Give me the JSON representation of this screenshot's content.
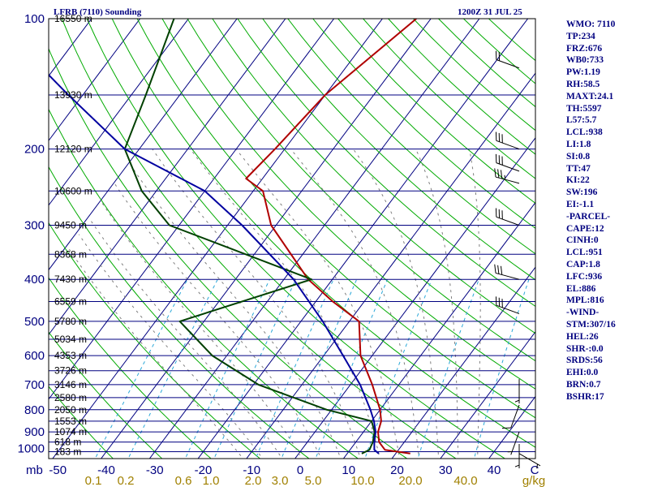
{
  "header": {
    "station": "LFRB (7110) Sounding",
    "valid_time": "1200Z 31 JUL 25"
  },
  "indices": [
    "WMO: 7110",
    "TP:234",
    "FRZ:676",
    "WB0:733",
    "PW:1.19",
    "RH:58.5",
    "MAXT:24.1",
    "TH:5597",
    "L57:5.7",
    "LCL:938",
    "LI:1.8",
    "SI:0.8",
    "TT:47",
    "KI:22",
    "SW:196",
    "EI:-1.1",
    "-PARCEL-",
    "CAPE:12",
    "CINH:0",
    "LCL:951",
    "CAP:1.8",
    "LFC:936",
    "EL:886",
    "MPL:816",
    "-WIND-",
    "STM:307/16",
    "HEL:26",
    "SHR-:0.0",
    "SRDS:56",
    "EHI:0.0",
    "BRN:0.7",
    "BSHR:17"
  ],
  "colors": {
    "frame": "#000000",
    "isobar": "#000080",
    "isotherm": "#000080",
    "dry_adiabat": "#00aa00",
    "moist_adiabat": "#7f7f7f",
    "mixing_ratio": "#2aa8d8",
    "temperature": "#b00000",
    "dewpoint": "#004000",
    "wetbulb": "#0000a0",
    "pressure_label": "#000080",
    "temp_label": "#000080",
    "mixratio_label": "#a08000",
    "wind_barb": "#000000"
  },
  "chart_data": {
    "type": "line",
    "diagram": "skew-T log-P",
    "title": "LFRB (7110) Sounding",
    "subtitle": "1200Z 31 JUL 25",
    "y_axis_unit": "mb",
    "x_axis_unit": "C",
    "mixing_ratio_unit": "g/kg",
    "pressure_levels": [
      100,
      200,
      300,
      400,
      500,
      600,
      700,
      800,
      900,
      1000
    ],
    "pressure_range": [
      1050,
      100
    ],
    "temperature_ticks": [
      -50,
      -40,
      -30,
      -20,
      -10,
      0,
      10,
      20,
      30,
      40
    ],
    "temperature_tick_labels": [
      "-50",
      "-40",
      "-30",
      "-20",
      "-10",
      "0",
      "10",
      "20",
      "30",
      "40",
      "C"
    ],
    "mixing_ratio_labels": [
      "0.1",
      "0.2",
      "0.6",
      "1.0",
      "2.0",
      "3.0",
      "5.0",
      "10.0",
      "20.0",
      "40.0",
      "g/kg"
    ],
    "mixing_ratio_values": [
      0.1,
      0.2,
      0.6,
      1.0,
      2.0,
      3.0,
      5.0,
      10.0,
      20.0,
      40.0
    ],
    "height_levels": [
      {
        "p": 100,
        "label": "16550 m"
      },
      {
        "p": 150,
        "label": "13930 m"
      },
      {
        "p": 200,
        "label": "12120 m"
      },
      {
        "p": 250,
        "label": "10600 m"
      },
      {
        "p": 300,
        "label": "9450 m"
      },
      {
        "p": 350,
        "label": "8368 m"
      },
      {
        "p": 400,
        "label": "7430 m"
      },
      {
        "p": 450,
        "label": "6559 m"
      },
      {
        "p": 500,
        "label": "5780 m"
      },
      {
        "p": 550,
        "label": "5034 m"
      },
      {
        "p": 600,
        "label": "4353 m"
      },
      {
        "p": 650,
        "label": "3726 m"
      },
      {
        "p": 700,
        "label": "3146 m"
      },
      {
        "p": 750,
        "label": "2580 m"
      },
      {
        "p": 800,
        "label": "2050 m"
      },
      {
        "p": 850,
        "label": "1553 m"
      },
      {
        "p": 900,
        "label": "1074 m"
      },
      {
        "p": 950,
        "label": "618 m"
      },
      {
        "p": 1000,
        "label": "183 m"
      }
    ],
    "series": [
      {
        "key": "temperature",
        "color": "#b00000",
        "points": [
          {
            "p": 1010,
            "t": 23.0
          },
          {
            "p": 990,
            "t": 17.2
          },
          {
            "p": 950,
            "t": 14.8
          },
          {
            "p": 900,
            "t": 13.0
          },
          {
            "p": 850,
            "t": 12.0
          },
          {
            "p": 800,
            "t": 10.0
          },
          {
            "p": 700,
            "t": 4.5
          },
          {
            "p": 600,
            "t": -2.4
          },
          {
            "p": 500,
            "t": -8.0
          },
          {
            "p": 450,
            "t": -16.5
          },
          {
            "p": 400,
            "t": -25.0
          },
          {
            "p": 300,
            "t": -41.0
          },
          {
            "p": 250,
            "t": -48.0
          },
          {
            "p": 234,
            "t": -53.4
          },
          {
            "p": 200,
            "t": -52.0
          },
          {
            "p": 150,
            "t": -50.0
          },
          {
            "p": 100,
            "t": -43.0
          }
        ]
      },
      {
        "key": "dewpoint",
        "color": "#004000",
        "points": [
          {
            "p": 1010,
            "t": 13.0
          },
          {
            "p": 990,
            "t": 14.0
          },
          {
            "p": 950,
            "t": 13.5
          },
          {
            "p": 900,
            "t": 12.3
          },
          {
            "p": 850,
            "t": 10.0
          },
          {
            "p": 800,
            "t": -1.0
          },
          {
            "p": 700,
            "t": -19.0
          },
          {
            "p": 600,
            "t": -33.0
          },
          {
            "p": 500,
            "t": -45.0
          },
          {
            "p": 400,
            "t": -24.3
          },
          {
            "p": 300,
            "t": -62.0
          },
          {
            "p": 250,
            "t": -73.0
          },
          {
            "p": 200,
            "t": -83.0
          },
          {
            "p": 150,
            "t": -87.0
          },
          {
            "p": 100,
            "t": -93.0
          }
        ]
      },
      {
        "key": "wetbulb",
        "color": "#0000a0",
        "points": [
          {
            "p": 1010,
            "t": 16.5
          },
          {
            "p": 990,
            "t": 15.0
          },
          {
            "p": 950,
            "t": 13.8
          },
          {
            "p": 900,
            "t": 12.5
          },
          {
            "p": 850,
            "t": 10.5
          },
          {
            "p": 800,
            "t": 8.0
          },
          {
            "p": 700,
            "t": 2.0
          },
          {
            "p": 600,
            "t": -6.0
          },
          {
            "p": 500,
            "t": -15.5
          },
          {
            "p": 400,
            "t": -28.0
          },
          {
            "p": 300,
            "t": -47.0
          },
          {
            "p": 250,
            "t": -60.0
          },
          {
            "p": 200,
            "t": -83.0
          },
          {
            "p": 150,
            "t": -103.0
          },
          {
            "p": 120,
            "t": -118.0
          },
          {
            "p": 100,
            "t": -125.0
          }
        ]
      }
    ],
    "wind_barbs": [
      {
        "p": 130,
        "dir": 290,
        "kt": 20
      },
      {
        "p": 200,
        "dir": 290,
        "kt": 30
      },
      {
        "p": 225,
        "dir": 290,
        "kt": 30
      },
      {
        "p": 240,
        "dir": 285,
        "kt": 35
      },
      {
        "p": 300,
        "dir": 290,
        "kt": 30
      },
      {
        "p": 400,
        "dir": 285,
        "kt": 30
      },
      {
        "p": 480,
        "dir": 290,
        "kt": 30
      },
      {
        "p": 680,
        "dir": 180,
        "kt": 5
      },
      {
        "p": 780,
        "dir": 200,
        "kt": 10
      },
      {
        "p": 900,
        "dir": 200,
        "kt": 5
      },
      {
        "p": 960,
        "dir": 180,
        "kt": 5
      },
      {
        "p": 1010,
        "dir": 120,
        "kt": 5
      }
    ]
  }
}
